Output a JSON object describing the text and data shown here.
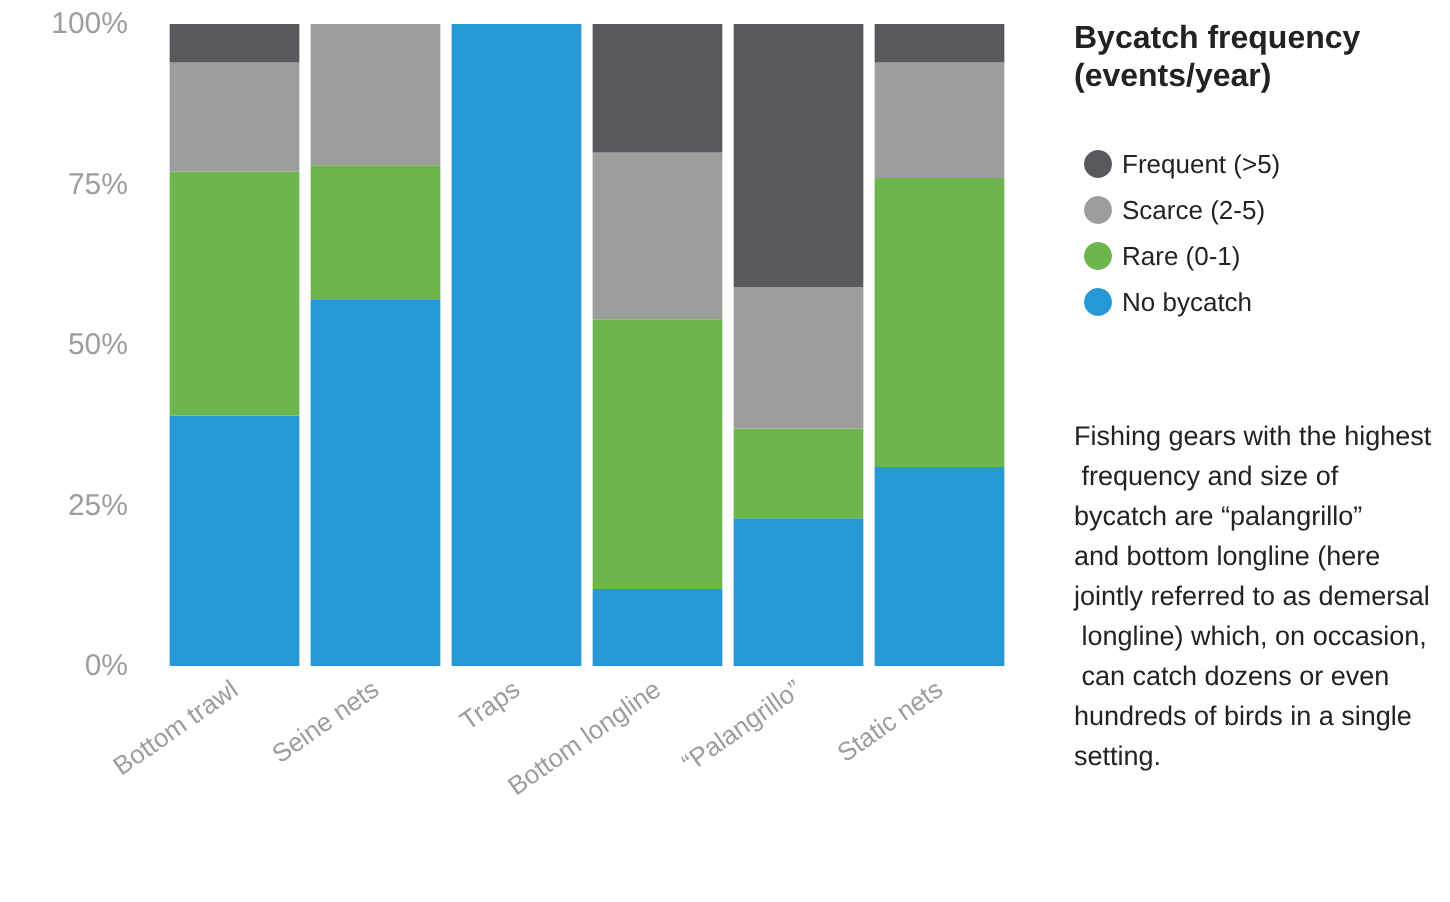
{
  "chart_data": {
    "type": "bar",
    "stacked": true,
    "legend_title": "Bycatch frequency (events/year)",
    "categories": [
      "Bottom trawl",
      "Seine nets",
      "Traps",
      "Bottom longline",
      "“Palangrillo”",
      "Static nets"
    ],
    "series": [
      {
        "name": "No bycatch",
        "color": "#2798d6",
        "values": [
          39,
          57,
          100,
          12,
          23,
          31
        ]
      },
      {
        "name": "Rare (0-1)",
        "color": "#6db64e",
        "values": [
          38,
          21,
          0,
          42,
          14,
          45
        ]
      },
      {
        "name": "Scarce (2-5)",
        "color": "#9d9d9b",
        "values": [
          17,
          22,
          0,
          26,
          22,
          18
        ]
      },
      {
        "name": "Frequent (>5)",
        "color": "#58595d",
        "values": [
          6,
          0,
          0,
          20,
          41,
          6
        ]
      }
    ],
    "ylim": [
      0,
      100
    ],
    "yticks": [
      {
        "value": 0,
        "label": "0%"
      },
      {
        "value": 25,
        "label": "25%"
      },
      {
        "value": 50,
        "label": "50%"
      },
      {
        "value": 75,
        "label": "75%"
      },
      {
        "value": 100,
        "label": "100%"
      }
    ],
    "grid": false,
    "legend": "right",
    "annotations": [
      "Fishing gears with the highest frequency and size of bycatch are “palangrillo” and bottom longline (here jointly referred to as demersal longline) which, on occasion, can catch dozens or even hundreds of birds in a single setting."
    ]
  }
}
